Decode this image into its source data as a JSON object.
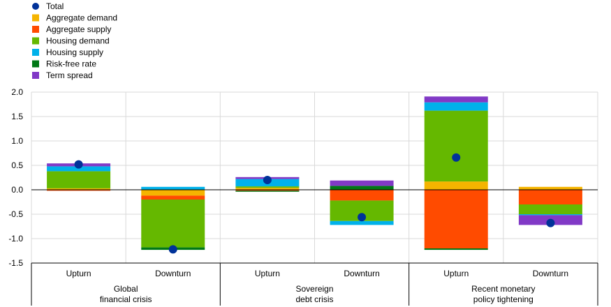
{
  "chart_data": {
    "type": "bar",
    "stacked": true,
    "ylim": [
      -1.5,
      2.0
    ],
    "yticks": [
      "2.0",
      "1.5",
      "1.0",
      "0.5",
      "0.0",
      "-0.5",
      "-1.0",
      "-1.5"
    ],
    "ytick_values": [
      2.0,
      1.5,
      1.0,
      0.5,
      0.0,
      -0.5,
      -1.0,
      -1.5
    ],
    "grid": true,
    "legend_position": "top-left",
    "categories": [
      "Upturn",
      "Downturn",
      "Upturn",
      "Downturn",
      "Upturn",
      "Downturn"
    ],
    "groups": [
      {
        "label_line1": "Global",
        "label_line2": "financial  crisis"
      },
      {
        "label_line1": "Sovereign",
        "label_line2": "debt crisis"
      },
      {
        "label_line1": "Recent monetary",
        "label_line2": "policy tightening"
      }
    ],
    "series": [
      {
        "name": "Aggregate demand",
        "color": "#f5b400",
        "values": [
          0.03,
          -0.12,
          0.04,
          0.0,
          0.17,
          0.06
        ]
      },
      {
        "name": "Aggregate supply",
        "color": "#ff4b00",
        "values": [
          -0.02,
          -0.08,
          -0.02,
          -0.22,
          -1.2,
          -0.3
        ]
      },
      {
        "name": "Housing demand",
        "color": "#65b800",
        "values": [
          0.35,
          -0.98,
          0.03,
          -0.42,
          1.45,
          -0.2
        ]
      },
      {
        "name": "Housing supply",
        "color": "#00b1ea",
        "values": [
          0.1,
          0.06,
          0.15,
          -0.08,
          0.17,
          -0.02
        ]
      },
      {
        "name": "Risk-free rate",
        "color": "#007816",
        "values": [
          0.0,
          -0.05,
          -0.02,
          0.08,
          -0.03,
          0.0
        ]
      },
      {
        "name": "Term spread",
        "color": "#8139c6",
        "values": [
          0.06,
          0.0,
          0.04,
          0.11,
          0.12,
          -0.2
        ]
      }
    ],
    "total": {
      "name": "Total",
      "color": "#003299",
      "values": [
        0.52,
        -1.22,
        0.2,
        -0.56,
        0.66,
        -0.68
      ]
    }
  }
}
